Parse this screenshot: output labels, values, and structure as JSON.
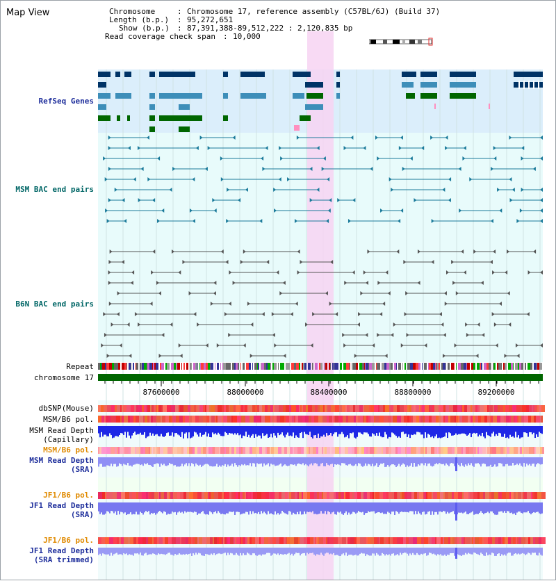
{
  "window_title": "Map View",
  "info": {
    "chromosome_key": "Chromosome",
    "chromosome_val": "Chromosome 17, reference assembly (C57BL/6J) (Build 37)",
    "length_key": "Length (b.p.)",
    "length_val": "95,272,651",
    "show_key": "Show (b.p.)",
    "show_val": "87,391,388-89,512,222 : 2,120,835 bp",
    "coverage_key": "Read coverage check span",
    "coverage_val": "10,000"
  },
  "tracks": {
    "refseq_genes": "RefSeq Genes",
    "msm_bac": "MSM BAC end pairs",
    "b6n_bac": "B6N BAC end pairs",
    "repeat": "Repeat",
    "chromosome": "chromosome 17",
    "dbsnp": "dbSNP(Mouse)",
    "msm_b6_pol_1": "MSM/B6 pol.",
    "msm_read_depth_cap_1": "MSM Read Depth",
    "msm_read_depth_cap_2": "(Capillary)",
    "msm_b6_pol_2": "MSM/B6 pol.",
    "msm_read_depth_sra_1": "MSM Read Depth",
    "msm_read_depth_sra_2": "(SRA)",
    "jf1_b6_pol_1": "JF1/B6 pol.",
    "jf1_read_depth_sra_1": "JF1 Read Depth",
    "jf1_read_depth_sra_2": "(SRA)",
    "jf1_b6_pol_2": "JF1/B6 pol.",
    "jf1_read_depth_trim_1": "JF1 Read Depth",
    "jf1_read_depth_trim_2": "(SRA trimmed)"
  },
  "axis": {
    "ticks": [
      "87600000",
      "88000000",
      "88400000",
      "88800000",
      "89200000"
    ]
  },
  "colors": {
    "highlight": "#f7d4f2",
    "refseq_bg": "#dbeefb",
    "lane_bg": "#e8fbfb",
    "dark_gene": "#003366",
    "light_gene": "#3d8eb9",
    "green_gene": "#006600",
    "bac_msm": "#1a7a9a",
    "bac_b6n": "#555555",
    "label_blue": "#1f2f9c",
    "label_teal": "#006666",
    "label_orange": "#e08a00"
  }
}
